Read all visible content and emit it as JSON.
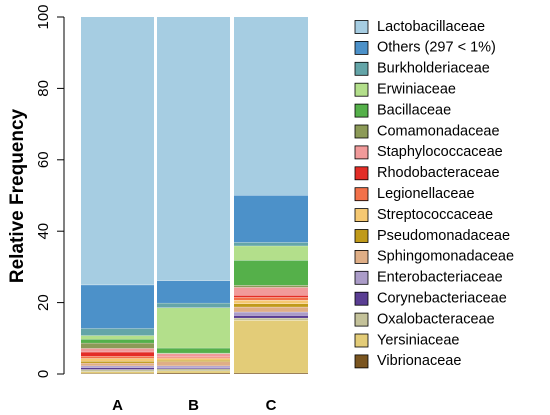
{
  "chart_data": {
    "type": "bar",
    "stacked": true,
    "ylabel": "Relative Frequency",
    "xlabel": "",
    "ylim": [
      0,
      100
    ],
    "yticks": [
      0,
      20,
      40,
      60,
      80,
      100
    ],
    "categories": [
      "A",
      "B",
      "C"
    ],
    "legend_position": "right",
    "series": [
      {
        "name": "Vibrionaceae",
        "color": "#7a5520",
        "values": [
          0.2,
          0.3,
          0.3
        ]
      },
      {
        "name": "Yersiniaceae",
        "color": "#e3cc78",
        "values": [
          0.5,
          0.6,
          14.8
        ]
      },
      {
        "name": "Oxalobacteraceae",
        "color": "#c4c29a",
        "values": [
          0.6,
          0.6,
          0.6
        ]
      },
      {
        "name": "Corynebacteriaceae",
        "color": "#5a3e93",
        "values": [
          0.5,
          0.3,
          0.7
        ]
      },
      {
        "name": "Enterobacteriaceae",
        "color": "#ab9cc8",
        "values": [
          0.5,
          0.5,
          1.0
        ]
      },
      {
        "name": "Sphingomonadaceae",
        "color": "#dfae86",
        "values": [
          0.8,
          1.2,
          1.4
        ]
      },
      {
        "name": "Pseudomonadaceae",
        "color": "#c09a1a",
        "values": [
          0.5,
          0.4,
          0.9
        ]
      },
      {
        "name": "Streptococcaceae",
        "color": "#f5c872",
        "values": [
          0.8,
          0.5,
          1.0
        ]
      },
      {
        "name": "Legionellaceae",
        "color": "#f2714a",
        "values": [
          0.6,
          0.3,
          0.8
        ]
      },
      {
        "name": "Rhodobacteraceae",
        "color": "#e32d27",
        "values": [
          1.2,
          0.2,
          0.6
        ]
      },
      {
        "name": "Staphylococcaceae",
        "color": "#f19a9a",
        "values": [
          1.0,
          0.8,
          2.2
        ]
      },
      {
        "name": "Comamonadaceae",
        "color": "#8c9a57",
        "values": [
          1.5,
          0.2,
          0.6
        ]
      },
      {
        "name": "Bacillaceae",
        "color": "#55b04a",
        "values": [
          1.1,
          1.4,
          7.0
        ]
      },
      {
        "name": "Erwiniaceae",
        "color": "#b3df8b",
        "values": [
          1.0,
          11.3,
          4.0
        ]
      },
      {
        "name": "Burkholderiaceae",
        "color": "#64a5a8",
        "values": [
          2.0,
          1.3,
          1.0
        ]
      },
      {
        "name": "Others (297 < 1%)",
        "color": "#4c91c9",
        "values": [
          12.2,
          6.3,
          13.2
        ]
      },
      {
        "name": "Lactobacillaceae",
        "color": "#a6cde2",
        "values": [
          75.0,
          73.8,
          49.9
        ]
      }
    ],
    "legend_order": [
      "Lactobacillaceae",
      "Others (297 < 1%)",
      "Burkholderiaceae",
      "Erwiniaceae",
      "Bacillaceae",
      "Comamonadaceae",
      "Staphylococcaceae",
      "Rhodobacteraceae",
      "Legionellaceae",
      "Streptococcaceae",
      "Pseudomonadaceae",
      "Sphingomonadaceae",
      "Enterobacteriaceae",
      "Corynebacteriaceae",
      "Oxalobacteraceae",
      "Yersiniaceae",
      "Vibrionaceae"
    ],
    "grid": false
  }
}
